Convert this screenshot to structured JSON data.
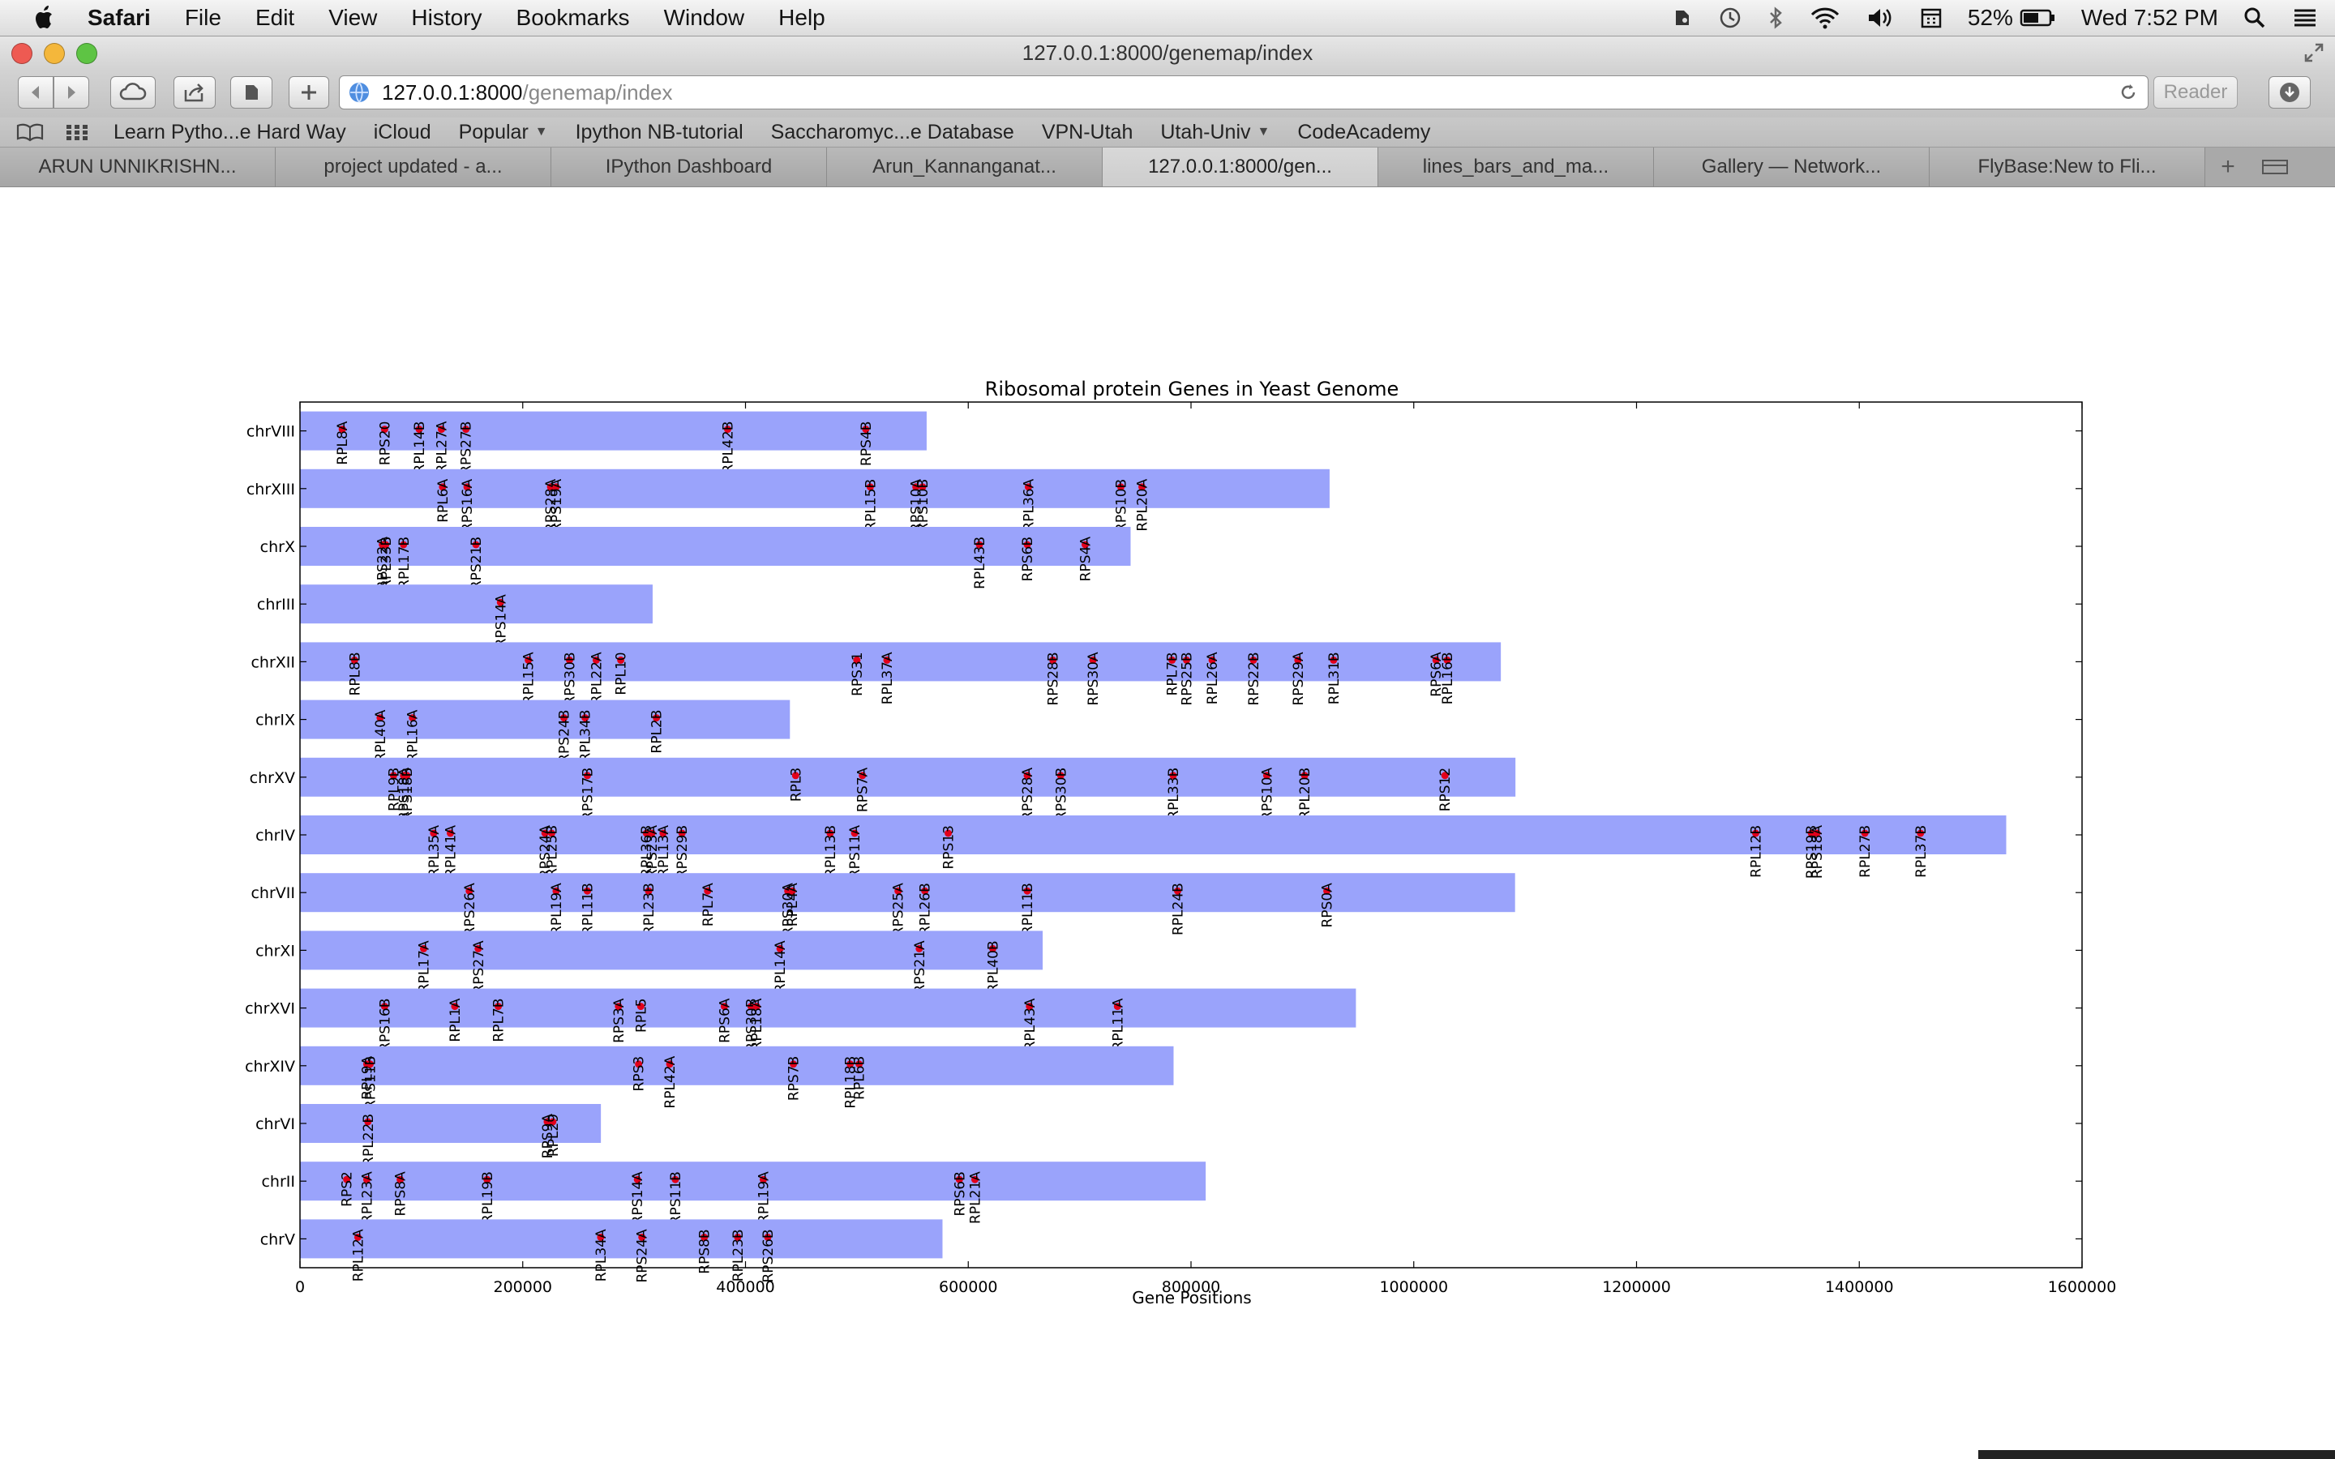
{
  "menubar": {
    "app": "Safari",
    "items": [
      "File",
      "Edit",
      "View",
      "History",
      "Bookmarks",
      "Window",
      "Help"
    ],
    "battery": "52%",
    "clock": "Wed 7:52 PM",
    "status_icons": [
      "evernote-icon",
      "time-machine-icon",
      "bluetooth-icon",
      "wifi-icon",
      "volume-icon",
      "calendar-icon",
      "battery-icon",
      "spotlight-icon",
      "list-icon"
    ]
  },
  "window": {
    "title": "127.0.0.1:8000/genemap/index"
  },
  "toolbar": {
    "url_host": "127.0.0.1:8000",
    "url_path": "/genemap/index",
    "reader": "Reader"
  },
  "bookmarks": [
    {
      "label": "Learn Pytho...e Hard Way",
      "dropdown": false
    },
    {
      "label": "iCloud",
      "dropdown": false
    },
    {
      "label": "Popular",
      "dropdown": true
    },
    {
      "label": "Ipython NB-tutorial",
      "dropdown": false
    },
    {
      "label": "Saccharomyc...e Database",
      "dropdown": false
    },
    {
      "label": "VPN-Utah",
      "dropdown": false
    },
    {
      "label": "Utah-Univ",
      "dropdown": true
    },
    {
      "label": "CodeAcademy",
      "dropdown": false
    }
  ],
  "tabs": [
    "ARUN UNNIKRISHN...",
    "project updated - a...",
    "IPython Dashboard",
    "Arun_Kannanganat...",
    "127.0.0.1:8000/gen...",
    "lines_bars_and_ma...",
    "Gallery — Network...",
    "FlyBase:New to Fli..."
  ],
  "active_tab": 4,
  "colors": {
    "bar": "#9aa3fb",
    "marker": "#e2001a",
    "axis": "#000000"
  },
  "chart_data": {
    "type": "bar",
    "orientation": "horizontal",
    "title": "Ribosomal protein Genes in Yeast Genome",
    "xlabel": "Gene Positions",
    "ylabel": "",
    "xlim": [
      0,
      1600000
    ],
    "xticks": [
      "0",
      "200000",
      "400000",
      "600000",
      "800000",
      "1000000",
      "1200000",
      "1400000",
      "1600000"
    ],
    "grid": false,
    "legend": "none",
    "series": [
      {
        "chrom": "chrVIII",
        "length": 562643,
        "genes": [
          {
            "name": "RPL8A",
            "pos": 38000
          },
          {
            "name": "RPS20",
            "pos": 76000
          },
          {
            "name": "RPL14B",
            "pos": 107000
          },
          {
            "name": "RPL27A",
            "pos": 127000
          },
          {
            "name": "RPS27B",
            "pos": 149000
          },
          {
            "name": "RPL42B",
            "pos": 384000
          },
          {
            "name": "RPS4B",
            "pos": 508000
          }
        ]
      },
      {
        "chrom": "chrXIII",
        "length": 924431,
        "genes": [
          {
            "name": "RPL6A",
            "pos": 128000
          },
          {
            "name": "RPS16A",
            "pos": 150000
          },
          {
            "name": "RPS28A",
            "pos": 225000
          },
          {
            "name": "RPS19A",
            "pos": 230000
          },
          {
            "name": "RPL15B",
            "pos": 512000
          },
          {
            "name": "RPS10A",
            "pos": 553000
          },
          {
            "name": "RPS10B",
            "pos": 559000
          },
          {
            "name": "RPL36A",
            "pos": 654000
          },
          {
            "name": "RPS10B",
            "pos": 737000
          },
          {
            "name": "RPL20A",
            "pos": 756000
          }
        ]
      },
      {
        "chrom": "chrX",
        "length": 745751,
        "genes": [
          {
            "name": "RPS22A",
            "pos": 74000
          },
          {
            "name": "RPL33B",
            "pos": 77000
          },
          {
            "name": "RPL17B",
            "pos": 93000
          },
          {
            "name": "RPS21B",
            "pos": 158000
          },
          {
            "name": "RPL43B",
            "pos": 610000
          },
          {
            "name": "RPS6B",
            "pos": 653000
          },
          {
            "name": "RPS4A",
            "pos": 705000
          }
        ]
      },
      {
        "chrom": "chrIII",
        "length": 316620,
        "genes": [
          {
            "name": "RPS14A",
            "pos": 180000
          }
        ]
      },
      {
        "chrom": "chrXII",
        "length": 1078177,
        "genes": [
          {
            "name": "RPL8B",
            "pos": 49000
          },
          {
            "name": "RPL15A",
            "pos": 205000
          },
          {
            "name": "RPS30B",
            "pos": 242000
          },
          {
            "name": "RPL22A",
            "pos": 266000
          },
          {
            "name": "RPL10",
            "pos": 288000
          },
          {
            "name": "RPS31",
            "pos": 500000
          },
          {
            "name": "RPL37A",
            "pos": 527000
          },
          {
            "name": "RPS28B",
            "pos": 676000
          },
          {
            "name": "RPS30A",
            "pos": 712000
          },
          {
            "name": "RPL7B",
            "pos": 783000
          },
          {
            "name": "RPS25B",
            "pos": 796000
          },
          {
            "name": "RPL26A",
            "pos": 819000
          },
          {
            "name": "RPS22B",
            "pos": 856000
          },
          {
            "name": "RPS29A",
            "pos": 896000
          },
          {
            "name": "RPL31B",
            "pos": 928000
          },
          {
            "name": "RPS6A",
            "pos": 1020000
          },
          {
            "name": "RPL16B",
            "pos": 1030000
          }
        ]
      },
      {
        "chrom": "chrIX",
        "length": 439888,
        "genes": [
          {
            "name": "RPL40A",
            "pos": 72000
          },
          {
            "name": "RPL16A",
            "pos": 101000
          },
          {
            "name": "RPS24B",
            "pos": 237000
          },
          {
            "name": "RPL34B",
            "pos": 256000
          },
          {
            "name": "RPL2B",
            "pos": 320000
          }
        ]
      },
      {
        "chrom": "chrXV",
        "length": 1091291,
        "genes": [
          {
            "name": "RPL9B",
            "pos": 84000
          },
          {
            "name": "RPS18A",
            "pos": 93000
          },
          {
            "name": "RPS18B",
            "pos": 96000
          },
          {
            "name": "RPS17B",
            "pos": 258000
          },
          {
            "name": "RPL3",
            "pos": 445000
          },
          {
            "name": "RPS7A",
            "pos": 505000
          },
          {
            "name": "RPS28A",
            "pos": 653000
          },
          {
            "name": "RPS30B",
            "pos": 683000
          },
          {
            "name": "RPL33B",
            "pos": 784000
          },
          {
            "name": "RPS10A",
            "pos": 868000
          },
          {
            "name": "RPL20B",
            "pos": 902000
          },
          {
            "name": "RPS12",
            "pos": 1028000
          }
        ]
      },
      {
        "chrom": "chrIV",
        "length": 1531933,
        "genes": [
          {
            "name": "RPL35A",
            "pos": 120000
          },
          {
            "name": "RPL41A",
            "pos": 135000
          },
          {
            "name": "RPS24A",
            "pos": 220000
          },
          {
            "name": "RPL25B",
            "pos": 226000
          },
          {
            "name": "RPL36B",
            "pos": 311000
          },
          {
            "name": "RPS23A",
            "pos": 316000
          },
          {
            "name": "RPL13A",
            "pos": 326000
          },
          {
            "name": "RPS29B",
            "pos": 343000
          },
          {
            "name": "RPL13B",
            "pos": 476000
          },
          {
            "name": "RPS11A",
            "pos": 498000
          },
          {
            "name": "RPS13",
            "pos": 582000
          },
          {
            "name": "RPL12B",
            "pos": 1307000
          },
          {
            "name": "RPS19B",
            "pos": 1357000
          },
          {
            "name": "RPS18A",
            "pos": 1362000
          },
          {
            "name": "RPL27B",
            "pos": 1405000
          },
          {
            "name": "RPL37B",
            "pos": 1455000
          }
        ]
      },
      {
        "chrom": "chrVII",
        "length": 1090940,
        "genes": [
          {
            "name": "RPS26A",
            "pos": 152000
          },
          {
            "name": "RPL19A",
            "pos": 230000
          },
          {
            "name": "RPL11B",
            "pos": 258000
          },
          {
            "name": "RPL23B",
            "pos": 313000
          },
          {
            "name": "RPL7A",
            "pos": 366000
          },
          {
            "name": "RPS30A",
            "pos": 438000
          },
          {
            "name": "RPL4A",
            "pos": 442000
          },
          {
            "name": "RPS25A",
            "pos": 537000
          },
          {
            "name": "RPL26B",
            "pos": 561000
          },
          {
            "name": "RPL11B",
            "pos": 653000
          },
          {
            "name": "RPL24B",
            "pos": 788000
          },
          {
            "name": "RPS0A",
            "pos": 922000
          }
        ]
      },
      {
        "chrom": "chrXI",
        "length": 666816,
        "genes": [
          {
            "name": "RPL17A",
            "pos": 111000
          },
          {
            "name": "RPS27A",
            "pos": 160000
          },
          {
            "name": "RPL14A",
            "pos": 431000
          },
          {
            "name": "RPS21A",
            "pos": 556000
          },
          {
            "name": "RPL40B",
            "pos": 622000
          }
        ]
      },
      {
        "chrom": "chrXVI",
        "length": 948066,
        "genes": [
          {
            "name": "RPS16B",
            "pos": 76000
          },
          {
            "name": "RPL1A",
            "pos": 139000
          },
          {
            "name": "RPL7B",
            "pos": 178000
          },
          {
            "name": "RPS3A",
            "pos": 286000
          },
          {
            "name": "RPL5",
            "pos": 306000
          },
          {
            "name": "RPS6A",
            "pos": 381000
          },
          {
            "name": "RPS30B",
            "pos": 405000
          },
          {
            "name": "RPL18A",
            "pos": 410000
          },
          {
            "name": "RPL43A",
            "pos": 655000
          },
          {
            "name": "RPL11A",
            "pos": 734000
          }
        ]
      },
      {
        "chrom": "chrXIV",
        "length": 784333,
        "genes": [
          {
            "name": "RPL9A",
            "pos": 60000
          },
          {
            "name": "RPS11B",
            "pos": 63000
          },
          {
            "name": "RPS3",
            "pos": 304000
          },
          {
            "name": "RPL42A",
            "pos": 332000
          },
          {
            "name": "RPS7B",
            "pos": 443000
          },
          {
            "name": "RPL18B",
            "pos": 494000
          },
          {
            "name": "RPL6B",
            "pos": 502000
          }
        ]
      },
      {
        "chrom": "chrVI",
        "length": 270161,
        "genes": [
          {
            "name": "RPL22B",
            "pos": 61000
          },
          {
            "name": "RPS9A",
            "pos": 222000
          },
          {
            "name": "RPL29",
            "pos": 227000
          }
        ]
      },
      {
        "chrom": "chrII",
        "length": 813184,
        "genes": [
          {
            "name": "RPS2",
            "pos": 42000
          },
          {
            "name": "RPL23A",
            "pos": 60000
          },
          {
            "name": "RPS8A",
            "pos": 90000
          },
          {
            "name": "RPL19B",
            "pos": 168000
          },
          {
            "name": "RPS14A",
            "pos": 303000
          },
          {
            "name": "RPS11B",
            "pos": 337000
          },
          {
            "name": "RPL19A",
            "pos": 416000
          },
          {
            "name": "RPS6B",
            "pos": 592000
          },
          {
            "name": "RPL21A",
            "pos": 606000
          }
        ]
      },
      {
        "chrom": "chrV",
        "length": 576874,
        "genes": [
          {
            "name": "RPL12A",
            "pos": 52000
          },
          {
            "name": "RPL34A",
            "pos": 270000
          },
          {
            "name": "RPS24A",
            "pos": 307000
          },
          {
            "name": "RPS8B",
            "pos": 363000
          },
          {
            "name": "RPL23B",
            "pos": 393000
          },
          {
            "name": "RPS26B",
            "pos": 420000
          }
        ]
      }
    ]
  }
}
